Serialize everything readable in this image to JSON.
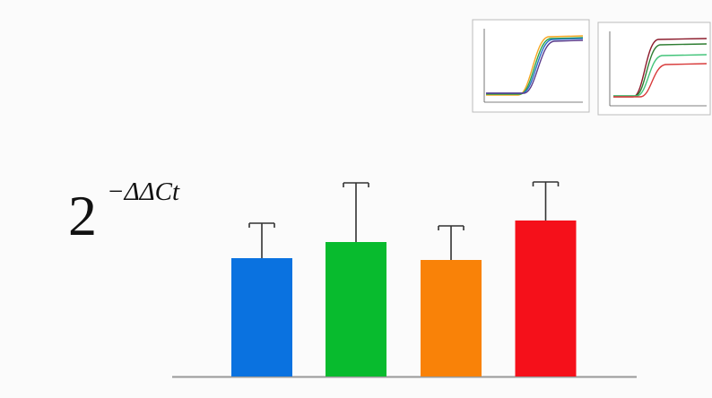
{
  "chart_data": {
    "type": "bar",
    "label": {
      "base": "2",
      "exponent": "−ΔΔCt"
    },
    "categories": [
      null,
      null,
      null,
      null
    ],
    "values": [
      1.32,
      1.5,
      1.3,
      1.74
    ],
    "errors": [
      0.39,
      0.66,
      0.38,
      0.43
    ],
    "colors": [
      "#0a72e0",
      "#08bb2e",
      "#f98208",
      "#f5101a"
    ],
    "ylim": [
      0,
      2.5
    ],
    "grid": false
  }
}
